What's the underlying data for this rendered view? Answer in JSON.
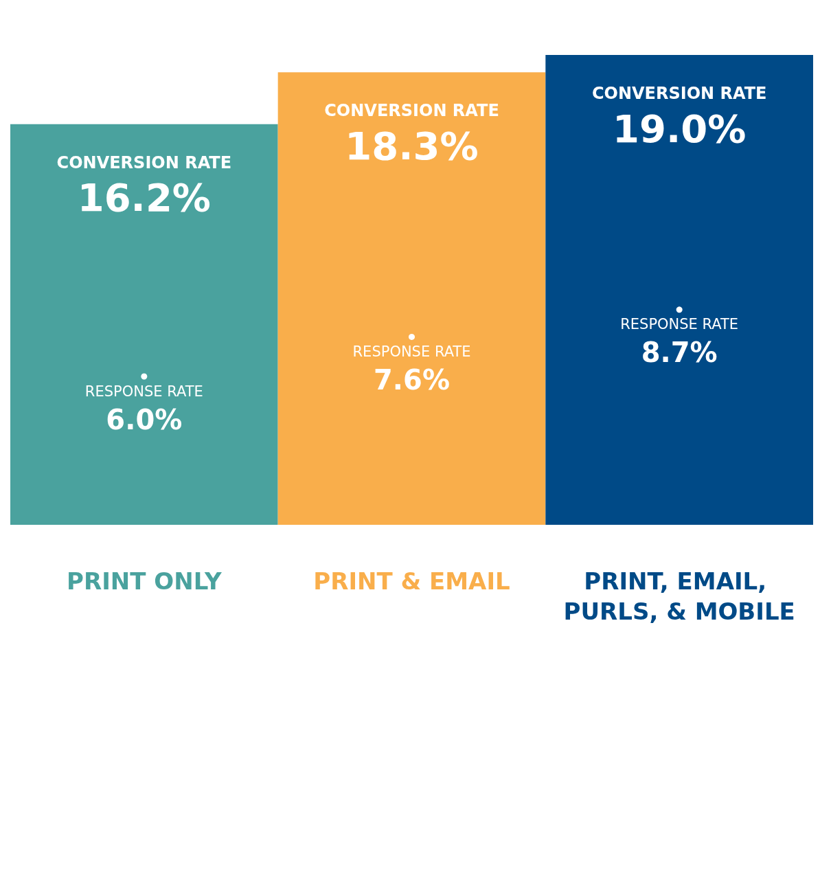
{
  "chart_data": {
    "type": "bar",
    "categories": [
      "PRINT ONLY",
      "PRINT & EMAIL",
      "PRINT, EMAIL, PURLS, & MOBILE"
    ],
    "series": [
      {
        "name": "CONVERSION RATE",
        "colors": [
          "#4aa29e",
          "#f9ae4b",
          "#004a87"
        ],
        "values": [
          16.2,
          18.3,
          19.0
        ],
        "value_labels": [
          "16.2%",
          "18.3%",
          "19.0%"
        ]
      },
      {
        "name": "RESPONSE RATE",
        "type": "scatter",
        "color": "#ffffff",
        "values": [
          6.0,
          7.6,
          8.7
        ],
        "value_labels": [
          "6.0%",
          "7.6%",
          "8.7%"
        ]
      }
    ],
    "legend": false,
    "grid": false
  }
}
